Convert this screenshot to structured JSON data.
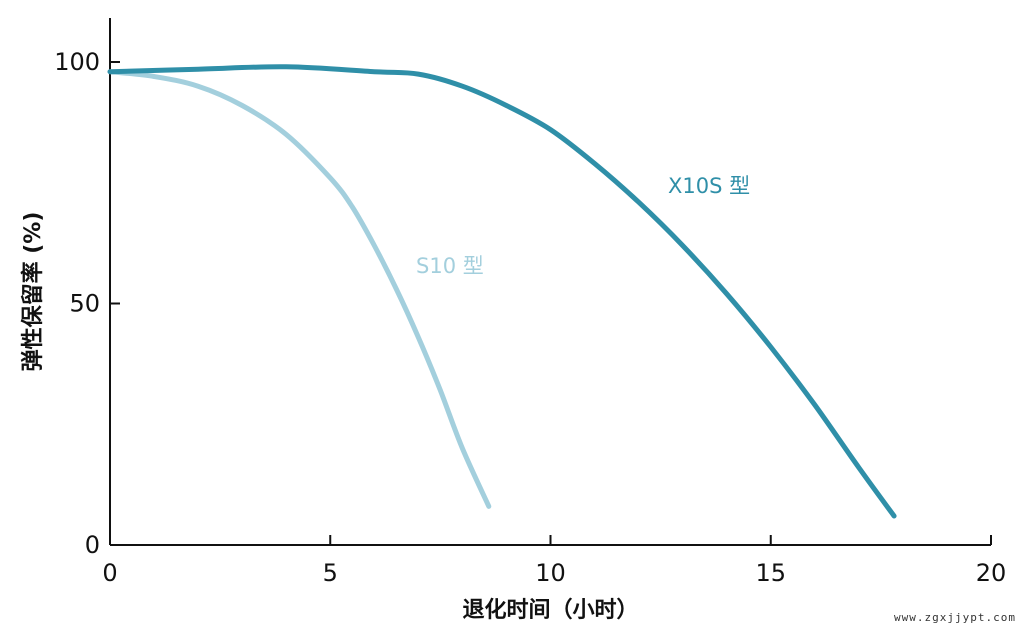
{
  "chart_data": {
    "type": "line",
    "xlabel": "退化时间（小时）",
    "ylabel": "弹性保留率 (%)",
    "xlim": [
      0,
      20
    ],
    "ylim": [
      0,
      110
    ],
    "xticks": [
      0,
      5,
      10,
      15,
      20
    ],
    "yticks": [
      0,
      50,
      100
    ],
    "xtick_labels": [
      "0",
      "5",
      "10",
      "15",
      "20"
    ],
    "ytick_labels": [
      "0",
      "50",
      "100"
    ],
    "grid": false,
    "legend": "inline labels",
    "series": [
      {
        "name": "S10 型",
        "color": "#a3cfdd",
        "x": [
          0,
          1,
          2,
          3,
          4,
          5,
          5.5,
          6,
          6.5,
          7,
          7.5,
          8,
          8.6
        ],
        "y": [
          98,
          97,
          95,
          91,
          85,
          76,
          70,
          62,
          53,
          43,
          32,
          20,
          8
        ]
      },
      {
        "name": "X10S 型",
        "color": "#2f8fa8",
        "x": [
          0,
          2,
          4,
          6,
          7,
          8,
          9,
          10,
          11,
          12,
          13,
          14,
          15,
          16,
          17,
          17.8
        ],
        "y": [
          98,
          98.5,
          99,
          98,
          97.5,
          95,
          91,
          86,
          79,
          71,
          62,
          52,
          41,
          29,
          16,
          6
        ]
      }
    ]
  },
  "watermark": "www.zgxjjypt.com"
}
